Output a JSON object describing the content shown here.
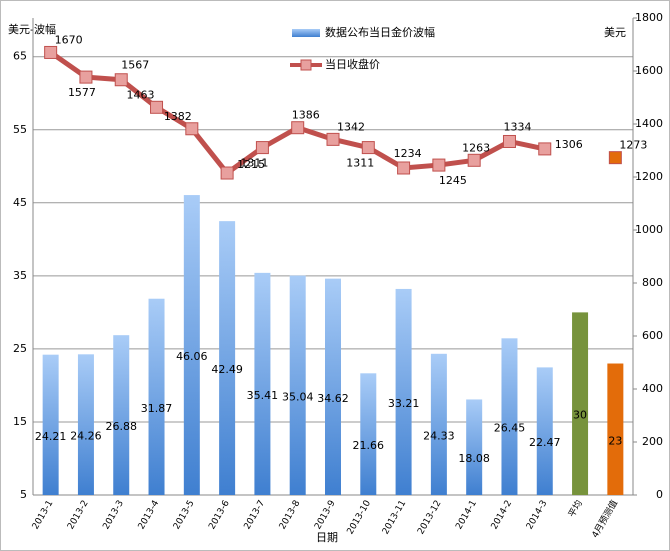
{
  "chart_data": {
    "type": "bar-line",
    "categories": [
      "2013-1",
      "2013-2",
      "2013-3",
      "2013-4",
      "2013-5",
      "2013-6",
      "2013-7",
      "2013-8",
      "2013-9",
      "2013-10",
      "2013-11",
      "2013-12",
      "2014-1",
      "2014-2",
      "2014-3",
      "平均",
      "4月预测值"
    ],
    "series": [
      {
        "name": "数据公布当日金价波幅",
        "type": "bar",
        "color": "#4a86d4",
        "colors": [
          "#4a86d4",
          "#4a86d4",
          "#4a86d4",
          "#4a86d4",
          "#4a86d4",
          "#4a86d4",
          "#4a86d4",
          "#4a86d4",
          "#4a86d4",
          "#4a86d4",
          "#4a86d4",
          "#4a86d4",
          "#4a86d4",
          "#4a86d4",
          "#4a86d4",
          "#77933c",
          "#e36c0a"
        ],
        "values": [
          24.21,
          24.26,
          26.88,
          31.87,
          46.06,
          42.49,
          35.41,
          35.04,
          34.62,
          21.66,
          33.21,
          24.33,
          18.08,
          26.45,
          22.47,
          30,
          23
        ]
      },
      {
        "name": "当日收盘价",
        "type": "line",
        "axis": "y2",
        "color": "#c0504d",
        "marker_colors": [
          "#e8a09e",
          "#e8a09e",
          "#e8a09e",
          "#e8a09e",
          "#e8a09e",
          "#e8a09e",
          "#e8a09e",
          "#e8a09e",
          "#e8a09e",
          "#e8a09e",
          "#e8a09e",
          "#e8a09e",
          "#e8a09e",
          "#e8a09e",
          "#e8a09e",
          null,
          "#e36c0a"
        ],
        "values": [
          1670,
          1577,
          1567,
          1463,
          1382,
          1215,
          1311,
          1386,
          1342,
          1311,
          1234,
          1245,
          1263,
          1334,
          1306,
          null,
          1273
        ]
      }
    ],
    "ylabel": "美元-波幅",
    "y2label": "美元",
    "xlabel": "日期",
    "ylim": [
      5,
      70.3
    ],
    "yticks": [
      5,
      15,
      25,
      35,
      45,
      55,
      65
    ],
    "y2lim": [
      0,
      1800
    ],
    "y2ticks": [
      0,
      200,
      400,
      600,
      800,
      1000,
      1200,
      1400,
      1600,
      1800
    ],
    "grid": true
  }
}
